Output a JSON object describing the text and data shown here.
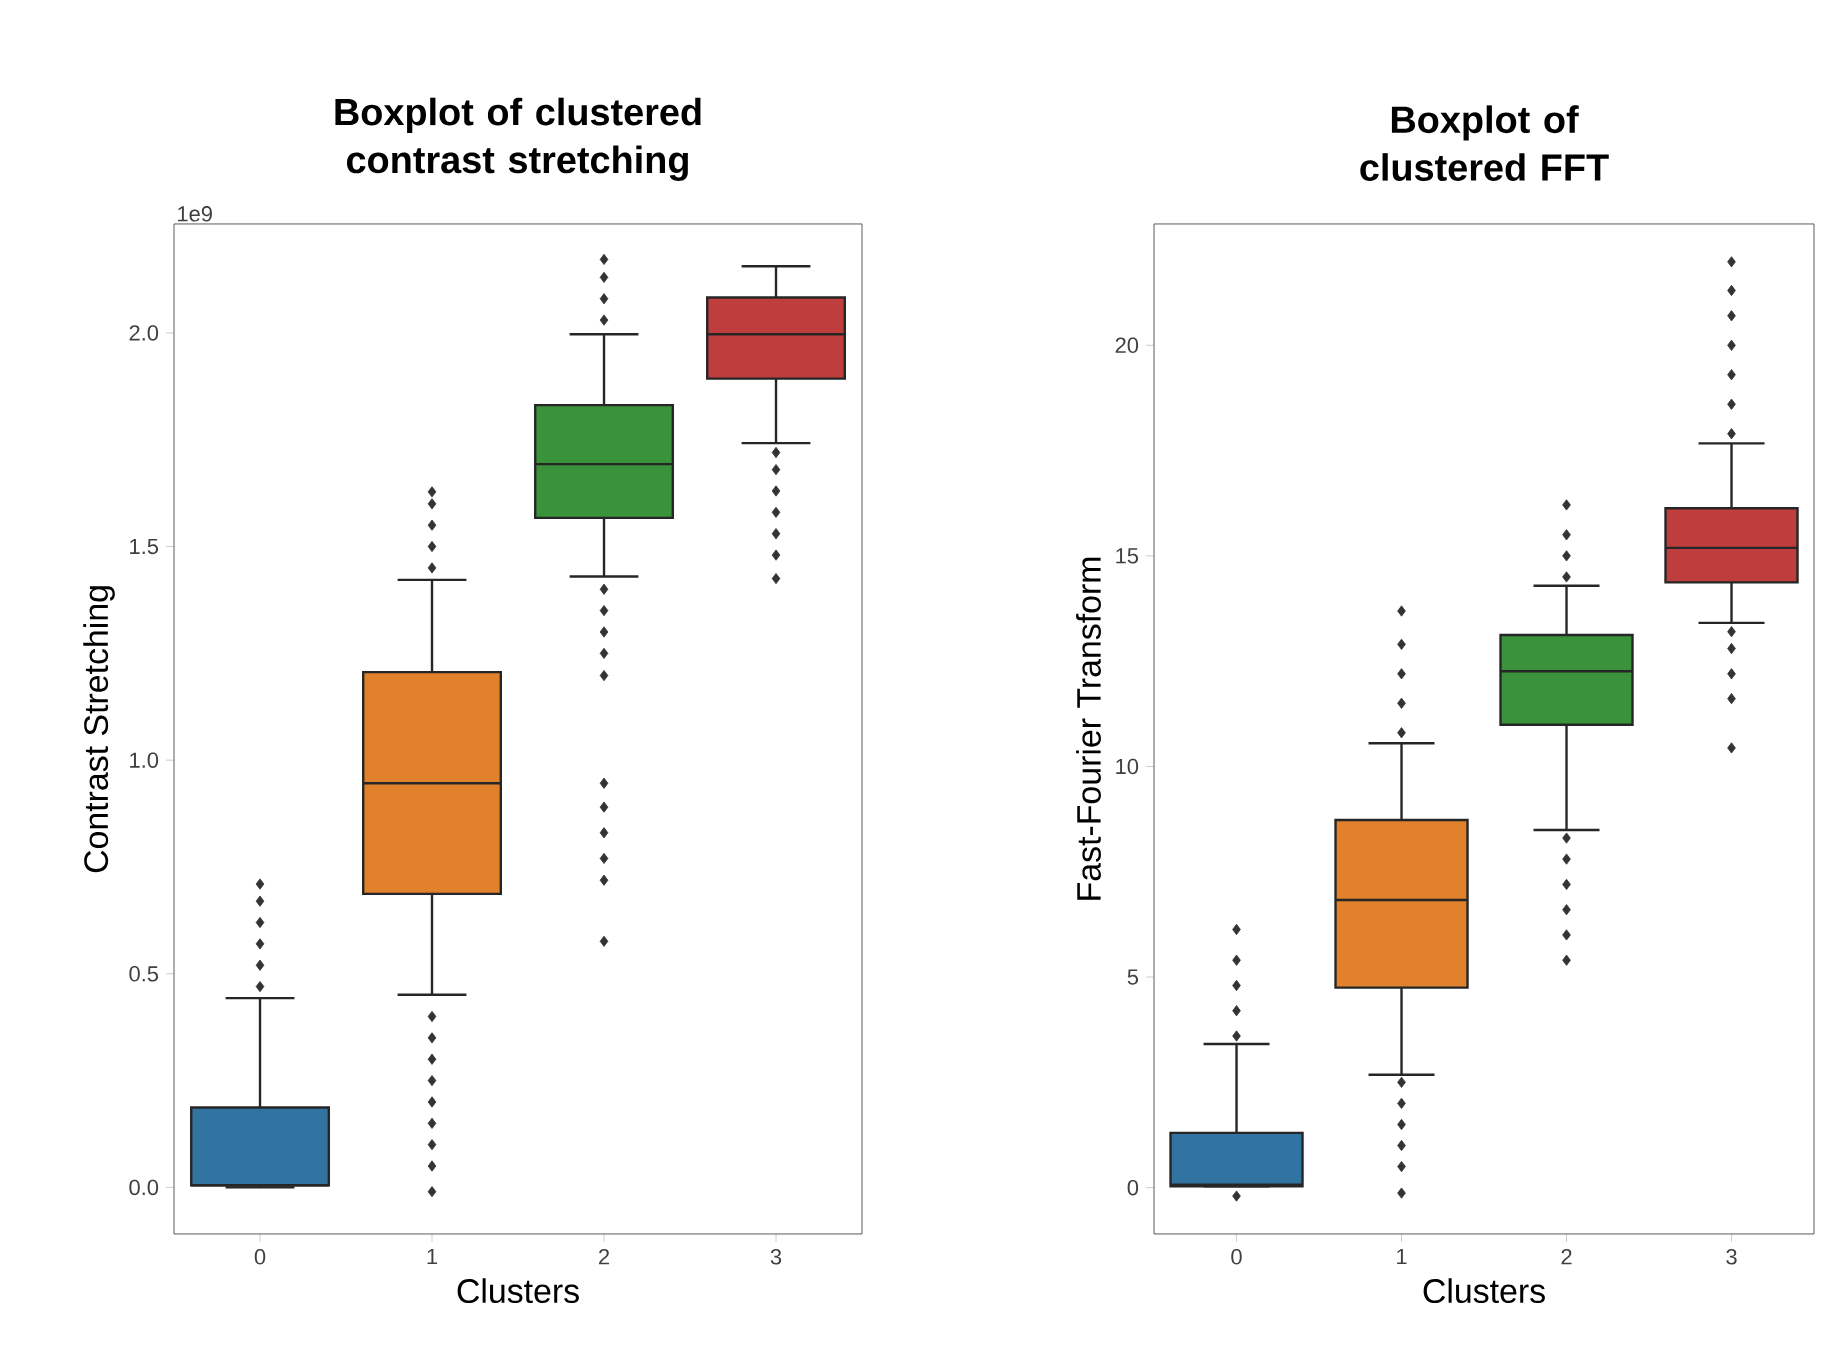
{
  "chart_data": [
    {
      "type": "box",
      "title": "Boxplot of clustered contrast stretching",
      "xlabel": "Clusters",
      "ylabel": "Contrast Stretching",
      "annotations": [
        "1e9"
      ],
      "categories": [
        "0",
        "1",
        "2",
        "3"
      ],
      "colors": [
        "#3274a1",
        "#e1812c",
        "#3a923a",
        "#c03d3e"
      ],
      "boxes": [
        {
          "low": 0.0,
          "q1": 0.005,
          "median": 0.005,
          "q3": 0.187,
          "high": 0.443,
          "outliers": [
            0.47,
            0.52,
            0.57,
            0.62,
            0.67,
            0.71
          ]
        },
        {
          "low": 0.451,
          "q1": 0.687,
          "median": 0.946,
          "q3": 1.206,
          "high": 1.422,
          "outliers": [
            -0.01,
            0.05,
            0.1,
            0.15,
            0.2,
            0.25,
            0.3,
            0.35,
            0.4,
            1.45,
            1.5,
            1.55,
            1.6,
            1.628
          ]
        },
        {
          "low": 1.43,
          "q1": 1.567,
          "median": 1.693,
          "q3": 1.831,
          "high": 1.997,
          "outliers": [
            0.576,
            0.719,
            0.77,
            0.83,
            0.89,
            0.946,
            1.198,
            1.25,
            1.3,
            1.35,
            1.4,
            2.03,
            2.08,
            2.13,
            2.172
          ]
        },
        {
          "low": 1.742,
          "q1": 1.893,
          "median": 1.997,
          "q3": 2.083,
          "high": 2.156,
          "outliers": [
            1.425,
            1.48,
            1.53,
            1.58,
            1.63,
            1.68,
            1.72
          ]
        }
      ],
      "ylim": [
        -0.109,
        2.255
      ],
      "yticks": [
        {
          "value": 0,
          "label": "0.0"
        },
        {
          "value": 0.5,
          "label": "0.5"
        },
        {
          "value": 1,
          "label": "1.0"
        },
        {
          "value": 1.5,
          "label": "1.5"
        },
        {
          "value": 2,
          "label": "2.0"
        }
      ]
    },
    {
      "type": "box",
      "title": "Boxplot of clustered FFT",
      "xlabel": "Clusters",
      "ylabel": "Fast-Fourier Transform",
      "categories": [
        "0",
        "1",
        "2",
        "3"
      ],
      "colors": [
        "#3274a1",
        "#e1812c",
        "#3a923a",
        "#c03d3e"
      ],
      "boxes": [
        {
          "low": 0.03,
          "q1": 0.03,
          "median": 0.07,
          "q3": 1.3,
          "high": 3.41,
          "outliers": [
            -0.2,
            3.6,
            4.2,
            4.8,
            5.4,
            6.13
          ]
        },
        {
          "low": 2.68,
          "q1": 4.75,
          "median": 6.83,
          "q3": 8.73,
          "high": 10.55,
          "outliers": [
            -0.13,
            0.5,
            1.0,
            1.5,
            2.0,
            2.5,
            10.8,
            11.5,
            12.2,
            12.9,
            13.69
          ]
        },
        {
          "low": 8.49,
          "q1": 10.99,
          "median": 12.26,
          "q3": 13.12,
          "high": 14.29,
          "outliers": [
            5.4,
            6.0,
            6.6,
            7.2,
            7.8,
            8.3,
            14.5,
            15.0,
            15.5,
            16.21
          ]
        },
        {
          "low": 13.41,
          "q1": 14.37,
          "median": 15.19,
          "q3": 16.13,
          "high": 17.67,
          "outliers": [
            10.44,
            11.61,
            12.2,
            12.8,
            13.2,
            17.9,
            18.6,
            19.3,
            20.0,
            20.7,
            21.3,
            21.98
          ]
        }
      ],
      "ylim": [
        -1.1,
        22.88
      ],
      "yticks": [
        0,
        5,
        10,
        15,
        20
      ]
    }
  ]
}
